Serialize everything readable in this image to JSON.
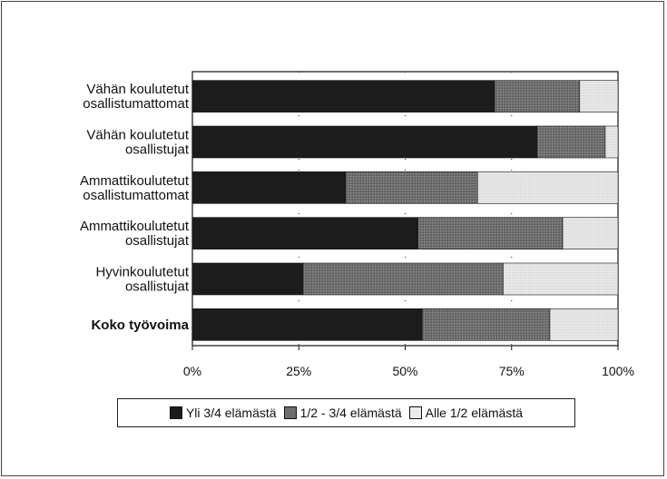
{
  "chart_data": {
    "type": "bar",
    "orientation": "horizontal",
    "stacked": "percent",
    "categories": [
      [
        "Vähän koulutetut",
        "osallistumattomat"
      ],
      [
        "Vähän koulutetut",
        "osallistujat"
      ],
      [
        "Ammattikoulutetut",
        "osallistumattomat"
      ],
      [
        "Ammattikoulutetut",
        "osallistujat"
      ],
      [
        "Hyvinkoulutetut",
        "osallistujat"
      ],
      [
        "Koko työvoima"
      ]
    ],
    "bold_category_index": 5,
    "series": [
      {
        "name": "Yli 3/4 elämästä",
        "color": "#1c1c1c",
        "values": [
          71,
          81,
          36,
          53,
          26,
          54
        ]
      },
      {
        "name": "1/2 - 3/4 elämästä",
        "color": "#6e6e6e",
        "values": [
          20,
          16,
          31,
          34,
          47,
          30
        ]
      },
      {
        "name": "Alle 1/2 elämästä",
        "color": "#e6e6e6",
        "values": [
          9,
          3,
          33,
          13,
          27,
          16
        ]
      }
    ],
    "x_ticks": [
      "0%",
      "25%",
      "50%",
      "75%",
      "100%"
    ],
    "xlim": [
      0,
      100
    ],
    "grid": "dotted vertical at 25, 50, 75",
    "legend_position": "bottom"
  }
}
